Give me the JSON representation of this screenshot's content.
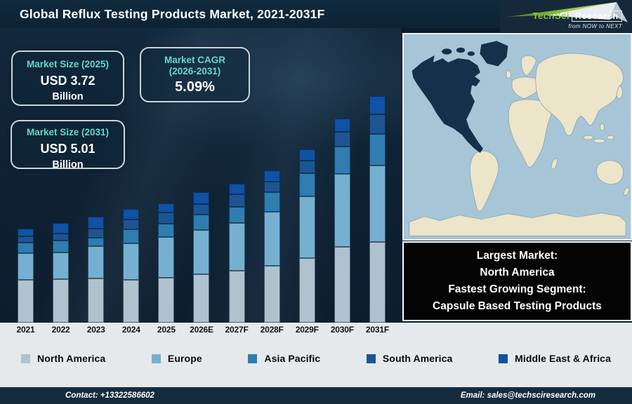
{
  "header": {
    "title": "Global Reflux Testing Products Market, 2021-2031F",
    "logo": {
      "brand_primary": "TechSci",
      "brand_secondary": "Research",
      "tagline": "from NOW to NEXT"
    }
  },
  "cards": [
    {
      "title": "Market Size (2025)",
      "value": "USD 3.72",
      "unit": "Billion"
    },
    {
      "title": "Market CAGR",
      "title2": "(2026-2031)",
      "value": "5.09%"
    },
    {
      "title": "Market Size (2031)",
      "value": "USD 5.01",
      "unit": "Billion"
    }
  ],
  "chart_data": {
    "type": "bar",
    "stacked": true,
    "title": "Global Reflux Testing Products Market, 2021-2031F",
    "xlabel": "",
    "ylabel": "",
    "value_units": "relative stacked-segment heights in px (chart shows no numeric value axis)",
    "grid": false,
    "legend_position": "bottom",
    "categories": [
      "2021",
      "2022",
      "2023",
      "2024",
      "2025",
      "2026E",
      "2027F",
      "2028F",
      "2029F",
      "2030F",
      "2031F"
    ],
    "series": [
      {
        "name": "North America",
        "color": "#aec3cf",
        "values": [
          61,
          62,
          63,
          61,
          64,
          69,
          74,
          81,
          92,
          108,
          115
        ]
      },
      {
        "name": "Europe",
        "color": "#76b0d1",
        "values": [
          38,
          38,
          46,
          52,
          58,
          63,
          68,
          77,
          88,
          104,
          109
        ]
      },
      {
        "name": "Asia Pacific",
        "color": "#2f7db1",
        "values": [
          15,
          17,
          12,
          20,
          19,
          22,
          23,
          28,
          33,
          39,
          45
        ]
      },
      {
        "name": "South America",
        "color": "#1d5593",
        "values": [
          9,
          10,
          13,
          14,
          16,
          15,
          18,
          15,
          18,
          21,
          28
        ]
      },
      {
        "name": "Middle East & Africa",
        "color": "#0f52a6",
        "values": [
          11,
          15,
          17,
          15,
          13,
          17,
          15,
          16,
          16,
          19,
          26
        ]
      }
    ],
    "anchors": {
      "market_size_2025_usd_billion": 3.72,
      "market_size_2031_usd_billion": 5.01,
      "cagr_2026_2031_percent": 5.09
    }
  },
  "map": {
    "highlighted_region": "North America",
    "colors": {
      "ocean": "#a6c5d7",
      "land": "#ece5c9",
      "highlight": "#14304a",
      "border": "#7d9fb0"
    }
  },
  "callout": {
    "lines": [
      "Largest Market:",
      "North America",
      "Fastest Growing Segment:",
      "Capsule Based Testing Products"
    ]
  },
  "footer": {
    "contact": "Contact: +13322586602",
    "email": "Email: sales@techsciresearch.com"
  }
}
